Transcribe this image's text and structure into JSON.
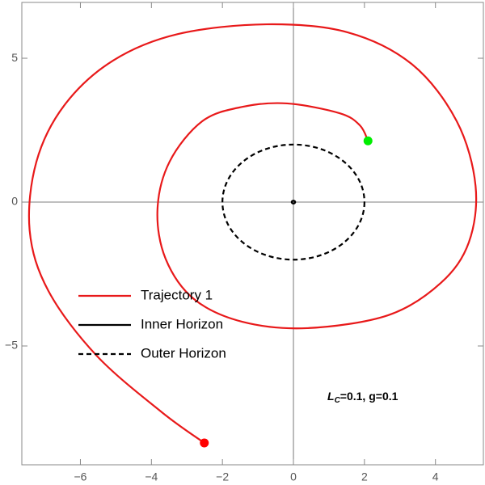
{
  "chart_data": {
    "type": "parametric",
    "xlim": [
      -7.65,
      5.35
    ],
    "ylim": [
      -9.13,
      6.94
    ],
    "xticks": [
      {
        "value": -6,
        "label": "−6"
      },
      {
        "value": -4,
        "label": "−4"
      },
      {
        "value": -2,
        "label": "−2"
      },
      0,
      2,
      4
    ],
    "yticks": [
      {
        "value": -5,
        "label": "−5"
      },
      0,
      5
    ],
    "legend_position": "lower left",
    "series": [
      {
        "name": "Trajectory 1",
        "color": "#e8191a",
        "start_color": "#ff0000",
        "end_color": "#00ee00",
        "x": [
          -2.51,
          -3.71,
          -5.54,
          -6.9,
          -7.43,
          -7.24,
          -6.45,
          -5.08,
          -3.26,
          -0.75,
          1.53,
          3.35,
          4.6,
          5.13,
          4.94,
          4.15,
          2.67,
          0.39,
          -1.44,
          -2.8,
          -3.6,
          -3.83,
          -3.49,
          -2.57,
          -1.44,
          -0.18,
          1.3,
          1.87,
          2.1
        ],
        "y": [
          -8.37,
          -7.3,
          -5.34,
          -3.09,
          -0.98,
          1.4,
          3.37,
          4.92,
          5.84,
          6.18,
          5.9,
          4.78,
          2.81,
          0.56,
          -1.4,
          -2.81,
          -3.93,
          -4.38,
          -4.16,
          -3.37,
          -1.97,
          -0.28,
          1.4,
          2.81,
          3.31,
          3.43,
          3.09,
          2.67,
          2.13
        ]
      },
      {
        "name": "Inner Horizon",
        "color": "#000000",
        "dash": false,
        "radius": 0.05
      },
      {
        "name": "Outer Horizon",
        "color": "#000000",
        "dash": true,
        "radius": 2
      }
    ],
    "annotation": {
      "main": "L",
      "sub": "C",
      "rest": "=0.1, g=0.1"
    }
  }
}
